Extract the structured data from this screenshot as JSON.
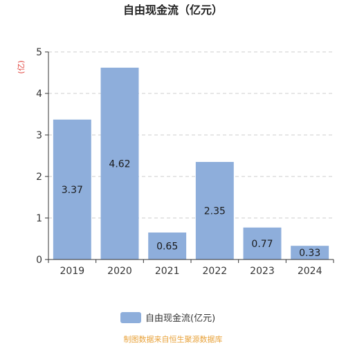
{
  "colors": {
    "bar": "#8eaedb",
    "title": "#222222",
    "axis": "#333333",
    "grid": "#cccccc",
    "unit": "#e0403a",
    "source": "#e8a23a"
  },
  "source_text": "制图数据来自恒生聚源数据库",
  "chart_data": {
    "type": "bar",
    "title": "自由现金流（亿元）",
    "ylabel": "(亿)",
    "xlabel": "",
    "categories": [
      "2019",
      "2020",
      "2021",
      "2022",
      "2023",
      "2024"
    ],
    "series": [
      {
        "name": "自由现金流(亿元)",
        "values": [
          3.37,
          4.62,
          0.65,
          2.35,
          0.77,
          0.33
        ]
      }
    ],
    "ylim": [
      0,
      5
    ],
    "yticks": [
      0,
      1,
      2,
      3,
      4,
      5
    ],
    "grid": true,
    "legend_position": "bottom"
  }
}
